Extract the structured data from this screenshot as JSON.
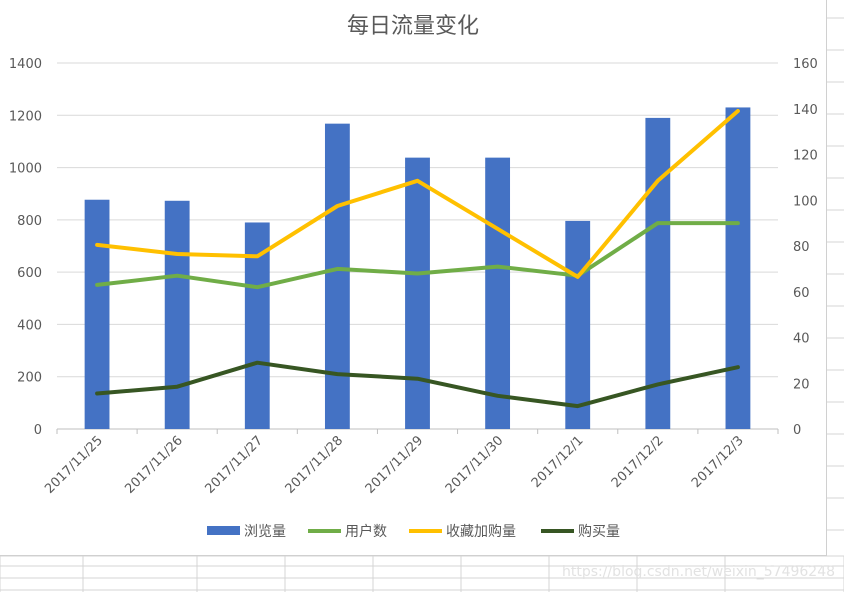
{
  "chart_data": {
    "type": "bar",
    "title": "每日流量变化",
    "categories": [
      "2017/11/25",
      "2017/11/26",
      "2017/11/27",
      "2017/11/28",
      "2017/11/29",
      "2017/11/30",
      "2017/12/1",
      "2017/12/2",
      "2017/12/3"
    ],
    "y_left": {
      "min": 0,
      "max": 1400,
      "ticks": [
        "0",
        "200",
        "400",
        "600",
        "800",
        "1000",
        "1200",
        "1400"
      ]
    },
    "y_right": {
      "min": 0,
      "max": 160,
      "ticks": [
        "0",
        "20",
        "40",
        "60",
        "80",
        "100",
        "120",
        "140",
        "160"
      ]
    },
    "grid": true,
    "legend_position": "bottom",
    "series": [
      {
        "name": "浏览量",
        "kind": "bar",
        "axis": "left",
        "color": "#4472C4",
        "values": [
          877,
          873,
          790,
          1168,
          1038,
          1038,
          796,
          1190,
          1230
        ]
      },
      {
        "name": "用户数",
        "kind": "line",
        "axis": "right",
        "color": "#70AD47",
        "values": [
          63,
          67,
          62,
          70,
          68,
          71,
          67,
          90,
          90
        ]
      },
      {
        "name": "收藏加购量",
        "kind": "line",
        "axis": "right",
        "color": "#FFC000",
        "values": [
          80.5,
          76.5,
          75.5,
          97.5,
          108.5,
          87.5,
          66.5,
          108.5,
          139
        ]
      },
      {
        "name": "购买量",
        "kind": "line",
        "axis": "right",
        "color": "#375623",
        "values": [
          15.5,
          18.5,
          29,
          24,
          22,
          14.5,
          10,
          19.5,
          27
        ]
      }
    ]
  },
  "watermark": "https://blog.csdn.net/weixin_57496248"
}
